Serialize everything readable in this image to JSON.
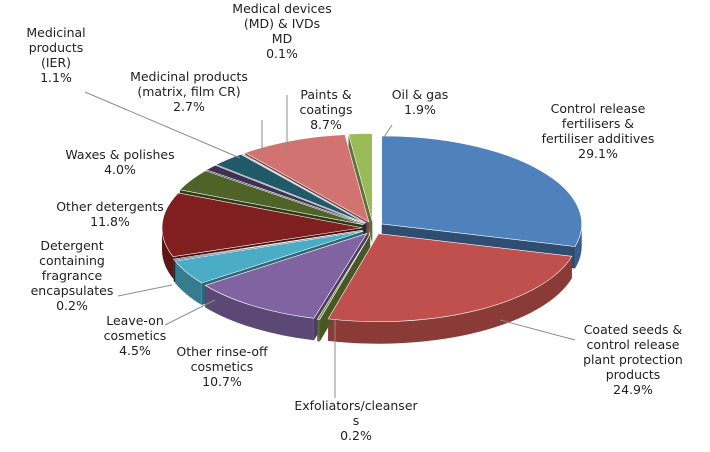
{
  "chart_data": {
    "type": "pie",
    "title": "",
    "series": [
      {
        "name": "",
        "slices": [
          {
            "label": "Control release fertilisers & fertiliser additives",
            "lines": [
              "Control release",
              "fertilisers &",
              "fertiliser additives"
            ],
            "value_text": "29.1%",
            "value": 29.1,
            "color": "#4f81bd"
          },
          {
            "label": "Coated seeds & control release plant protection products",
            "lines": [
              "Coated seeds &",
              "control release",
              "plant protection",
              "products"
            ],
            "value_text": "24.9%",
            "value": 24.9,
            "color": "#c0504d"
          },
          {
            "label": "Exfoliators/cleansers",
            "lines": [
              "Exfoliators/cleanser",
              "s"
            ],
            "value_text": "0.2%",
            "value": 0.2,
            "color": "#77933c"
          },
          {
            "label": "Other rinse-off cosmetics",
            "lines": [
              "Other rinse-off",
              "cosmetics"
            ],
            "value_text": "10.7%",
            "value": 10.7,
            "color": "#8064a2"
          },
          {
            "label": "Leave-on cosmetics",
            "lines": [
              "Leave-on",
              "cosmetics"
            ],
            "value_text": "4.5%",
            "value": 4.5,
            "color": "#4bacc6"
          },
          {
            "label": "Detergent containing fragrance encapsulates",
            "lines": [
              "Detergent",
              "containing",
              "fragrance",
              "encapsulates"
            ],
            "value_text": "0.2%",
            "value": 0.2,
            "color": "#1f3b57"
          },
          {
            "label": "Other detergents",
            "lines": [
              "Other detergents"
            ],
            "value_text": "11.8%",
            "value": 11.8,
            "color": "#7f1f1f"
          },
          {
            "label": "Waxes & polishes",
            "lines": [
              "Waxes & polishes"
            ],
            "value_text": "4.0%",
            "value": 4.0,
            "color": "#4f6228"
          },
          {
            "label": "Medicinal products (IER)",
            "lines": [
              "Medicinal",
              "products",
              "(IER)"
            ],
            "value_text": "1.1%",
            "value": 1.1,
            "color": "#3f3151"
          },
          {
            "label": "Medicinal products (matrix, film CR)",
            "lines": [
              "Medicinal products",
              "(matrix, film CR)"
            ],
            "value_text": "2.7%",
            "value": 2.7,
            "color": "#215968"
          },
          {
            "label": "Medical devices (MD) & IVDs MD",
            "lines": [
              "Medical devices",
              "(MD) & IVDs",
              "MD"
            ],
            "value_text": "0.1%",
            "value": 0.1,
            "color": "#1f497d"
          },
          {
            "label": "Paints & coatings",
            "lines": [
              "Paints &",
              "coatings"
            ],
            "value_text": "8.7%",
            "value": 8.7,
            "color": "#d07371"
          },
          {
            "label": "Oil & gas",
            "lines": [
              "Oil & gas"
            ],
            "value_text": "1.9%",
            "value": 1.9,
            "color": "#9bbb59"
          }
        ]
      }
    ]
  }
}
